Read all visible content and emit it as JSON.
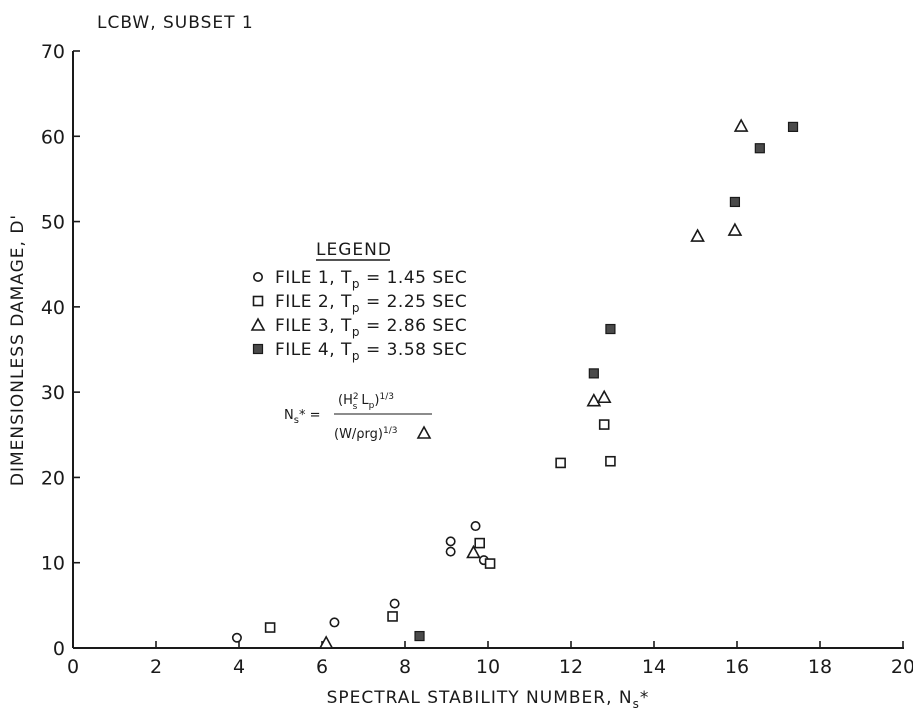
{
  "chart_data": {
    "type": "scatter",
    "title": "LCBW, SUBSET 1",
    "xlabel": "SPECTRAL STABILITY NUMBER, N",
    "xlabel_sub": "s",
    "xlabel_suffix": "*",
    "ylabel": "DIMENSIONLESS DAMAGE, D'",
    "xlim": [
      0,
      20
    ],
    "ylim": [
      0,
      70
    ],
    "xticks": [
      0,
      2,
      4,
      6,
      8,
      10,
      12,
      14,
      16,
      18,
      20
    ],
    "yticks": [
      0,
      10,
      20,
      30,
      40,
      50,
      60,
      70
    ],
    "grid": false,
    "legend_title": "LEGEND",
    "legend_placement": "center-left",
    "series": [
      {
        "name": "FILE 1, T",
        "name_sub": "p",
        "name_suffix": " = 1.45 SEC",
        "marker": "circle",
        "points": [
          [
            3.95,
            1.2
          ],
          [
            6.3,
            3.0
          ],
          [
            7.75,
            5.2
          ],
          [
            9.1,
            12.5
          ],
          [
            9.1,
            11.3
          ],
          [
            9.7,
            14.3
          ],
          [
            9.9,
            10.3
          ]
        ]
      },
      {
        "name": "FILE 2, T",
        "name_sub": "p",
        "name_suffix": " = 2.25 SEC",
        "marker": "square",
        "points": [
          [
            4.75,
            2.4
          ],
          [
            7.7,
            3.7
          ],
          [
            9.8,
            12.3
          ],
          [
            10.05,
            9.9
          ],
          [
            11.75,
            21.7
          ],
          [
            12.8,
            26.2
          ],
          [
            12.95,
            21.9
          ]
        ]
      },
      {
        "name": "FILE 3, T",
        "name_sub": "p",
        "name_suffix": " = 2.86 SEC",
        "marker": "triangle",
        "points": [
          [
            6.1,
            0.6
          ],
          [
            9.65,
            11.2
          ],
          [
            12.55,
            29.0
          ],
          [
            12.8,
            29.4
          ],
          [
            15.05,
            48.3
          ],
          [
            15.95,
            49.0
          ],
          [
            16.1,
            61.2
          ]
        ]
      },
      {
        "name": "FILE 4, T",
        "name_sub": "p",
        "name_suffix": " = 3.58 SEC",
        "marker": "filled-square",
        "points": [
          [
            8.35,
            1.4
          ],
          [
            12.55,
            32.2
          ],
          [
            12.95,
            37.4
          ],
          [
            15.95,
            52.3
          ],
          [
            16.55,
            58.6
          ],
          [
            17.35,
            61.1
          ]
        ]
      }
    ],
    "annotation": {
      "lhs": "N",
      "lhs_sub": "s",
      "lhs_suffix": "* =",
      "numerator": "(H",
      "num_sup": "2",
      "num_sub": "s",
      "num_mid": " L",
      "num_sub2": "p",
      "num_end": ")",
      "num_exp": "1/3",
      "denominator": "(W/ρrg)",
      "den_exp": "1/3",
      "den_marker": "triangle"
    }
  }
}
